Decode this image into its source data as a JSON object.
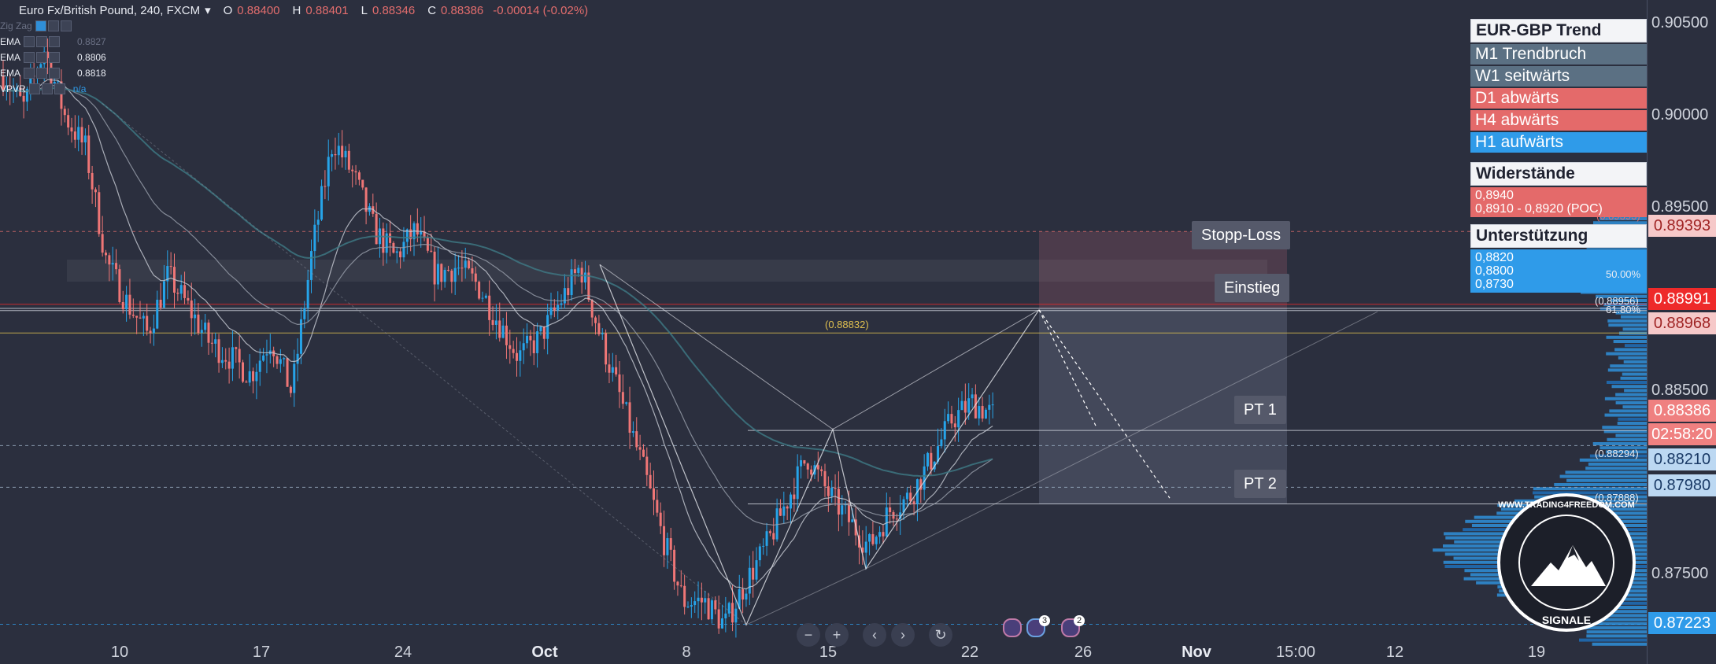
{
  "header": {
    "symbol": "Euro Fx/British Pound, 240, FXCM",
    "open_label": "O",
    "open": "0.88400",
    "high_label": "H",
    "high": "0.88401",
    "low_label": "L",
    "low": "0.88346",
    "close_label": "C",
    "close": "0.88386",
    "change": "-0.00014 (-0.02%)"
  },
  "indicators": [
    {
      "name": "Zig Zag",
      "value": ""
    },
    {
      "name": "EMA",
      "value": "0.8827"
    },
    {
      "name": "EMA",
      "value": "0.8806"
    },
    {
      "name": "EMA",
      "value": "0.8818"
    },
    {
      "name": "VPVR",
      "value": "n/a"
    }
  ],
  "trend_panel": {
    "title": "EUR-GBP Trend",
    "rows": [
      {
        "label": "M1 Trendbruch",
        "color": "#5b7083"
      },
      {
        "label": "W1 seitwärts",
        "color": "#5b7083"
      },
      {
        "label": "D1 abwärts",
        "color": "#e46a6a"
      },
      {
        "label": "H4 abwärts",
        "color": "#e46a6a"
      },
      {
        "label": "H1 aufwärts",
        "color": "#2f9be9"
      }
    ]
  },
  "resistance_panel": {
    "title": "Widerstände",
    "lines": [
      "0,8940",
      "0,8910 - 0,8920 (POC)"
    ],
    "color": "#e46a6a"
  },
  "support_panel": {
    "title": "Unterstützung",
    "lines": [
      "0,8820",
      "0,8800",
      "0,8730"
    ],
    "color": "#2f9be9"
  },
  "trade_labels": {
    "stop_loss": "Stopp-Loss",
    "entry": "Einstieg",
    "pt1": "PT 1",
    "pt2": "PT 2"
  },
  "fib_labels": {
    "f50": "50.00%",
    "f618": "61.80%",
    "p88956": "(0.88956)",
    "p88832": "(0.88832)",
    "p88294": "(0.88294)",
    "p87888": "(0.87888)",
    "p89393": "(0.89393)"
  },
  "price_axis": {
    "ticks": [
      "0.90500",
      "0.90000",
      "0.89500",
      "0.88500",
      "0.87500"
    ],
    "badges": [
      {
        "text": "0.89393",
        "bg": "#f6c9c9",
        "fg": "#a02525"
      },
      {
        "text": "0.88991",
        "bg": "#ee2a2a",
        "fg": "#ffffff"
      },
      {
        "text": "0.88968",
        "bg": "#f6c9c9",
        "fg": "#a02525"
      },
      {
        "text": "0.88386",
        "bg": "#ef8080",
        "fg": "#ffffff"
      },
      {
        "text": "02:58:20",
        "bg": "#ef8080",
        "fg": "#ffffff"
      },
      {
        "text": "0.88210",
        "bg": "#bcd8f2",
        "fg": "#1a3a66"
      },
      {
        "text": "0.87980",
        "bg": "#bcd8f2",
        "fg": "#1a3a66"
      },
      {
        "text": "0.87223",
        "bg": "#2f9be9",
        "fg": "#ffffff"
      }
    ]
  },
  "time_axis": {
    "ticks": [
      {
        "label": "10",
        "bold": false
      },
      {
        "label": "17",
        "bold": false
      },
      {
        "label": "24",
        "bold": false
      },
      {
        "label": "Oct",
        "bold": true
      },
      {
        "label": "8",
        "bold": false
      },
      {
        "label": "15",
        "bold": false
      },
      {
        "label": "22",
        "bold": false
      },
      {
        "label": "26",
        "bold": false
      },
      {
        "label": "Nov",
        "bold": true
      },
      {
        "label": "15:00",
        "bold": false
      },
      {
        "label": "12",
        "bold": false
      },
      {
        "label": "19",
        "bold": false
      }
    ]
  },
  "toolbar": {
    "zoom_out": "−",
    "zoom_in": "+",
    "scroll_left": "‹",
    "scroll_right": "›",
    "reset": "↻",
    "alert_count_1": "3",
    "alert_count_2": "2"
  },
  "logo": {
    "text_top": "WWW.TRADING4FREEDOM.COM",
    "text_bottom": "SIGNALE"
  },
  "colors": {
    "bull": "#26a4e9",
    "bear": "#ef7676",
    "bg": "#2b2f3e",
    "vpvr": "#2f8fd9"
  },
  "chart_data": {
    "type": "candlestick",
    "symbol": "EUR/GBP",
    "timeframe": "240",
    "x": [
      "10",
      "17",
      "24",
      "Oct",
      "8",
      "15",
      "22",
      "26",
      "Nov",
      "15:00",
      "12",
      "19"
    ],
    "ylim": [
      0.8716,
      0.9055
    ],
    "ohlc_path": [
      0.9025,
      0.9008,
      0.904,
      0.9003,
      0.8985,
      0.8923,
      0.89,
      0.8883,
      0.8915,
      0.8897,
      0.8878,
      0.887,
      0.886,
      0.888,
      0.885,
      0.893,
      0.899,
      0.897,
      0.894,
      0.8925,
      0.894,
      0.8915,
      0.892,
      0.891,
      0.889,
      0.887,
      0.888,
      0.89,
      0.892,
      0.888,
      0.8845,
      0.881,
      0.877,
      0.8735,
      0.8735,
      0.8722,
      0.8745,
      0.8765,
      0.879,
      0.8815,
      0.8795,
      0.878,
      0.8765,
      0.8785,
      0.8793,
      0.8813,
      0.8835,
      0.8845,
      0.8838
    ],
    "levels": [
      0.89393,
      0.88991,
      0.88968,
      0.88956,
      0.88832,
      0.88294,
      0.8821,
      0.8798,
      0.87888,
      0.87223
    ]
  }
}
